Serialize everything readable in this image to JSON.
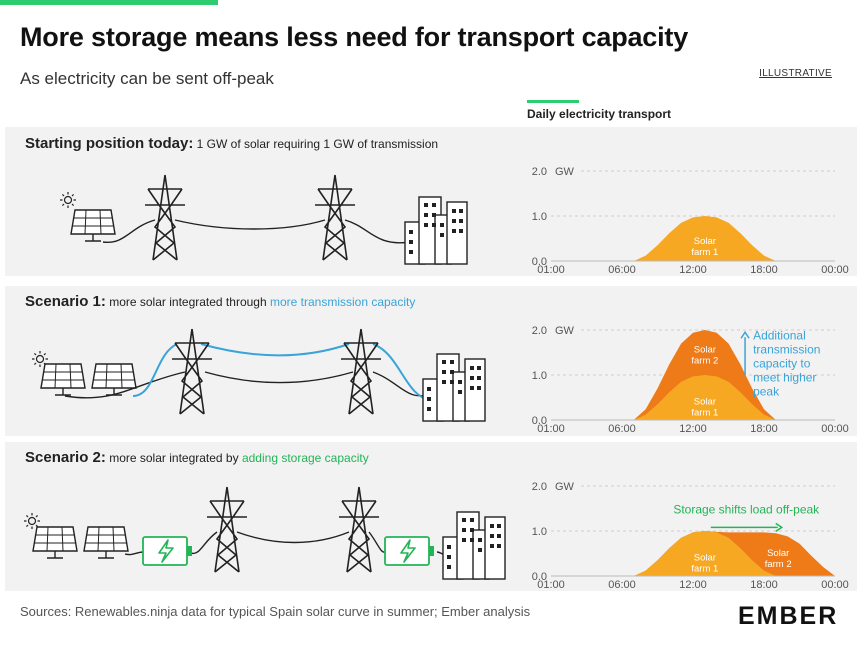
{
  "header": {
    "title": "More storage means less need for transport capacity",
    "subtitle": "As electricity can be sent off-peak",
    "tag": "ILLUSTRATIVE",
    "chart_header": "Daily electricity transport"
  },
  "panels": [
    {
      "heading": "Starting position today:",
      "text": " 1 GW of solar requiring 1 GW of transmission",
      "highlight": ""
    },
    {
      "heading": "Scenario 1:",
      "text": " more solar integrated through ",
      "highlight": "more transmission capacity"
    },
    {
      "heading": "Scenario 2:",
      "text": " more solar integrated by ",
      "highlight": "adding storage capacity"
    }
  ],
  "colors": {
    "solar_farm_1": "#f7a823",
    "solar_farm_2": "#ee7a18",
    "transmission_annotation": "#3aa3d8",
    "storage_annotation": "#22b556",
    "panel_background": "#f2f2f2"
  },
  "footer": {
    "sources": "Sources: Renewables.ninja data for typical Spain solar curve in summer; Ember analysis",
    "logo": "EMBER"
  },
  "chart_data": [
    {
      "type": "area",
      "title": "Starting position today",
      "ylabel": "GW",
      "xlim": [
        0,
        24
      ],
      "ylim": [
        0,
        2
      ],
      "x_ticks": [
        0,
        6,
        12,
        18,
        24
      ],
      "x_tick_labels": [
        "01:00",
        "06:00",
        "12:00",
        "18:00",
        "00:00"
      ],
      "y_ticks": [
        0,
        1,
        2
      ],
      "y_tick_labels": [
        "0.0",
        "1.0",
        "2.0"
      ],
      "y_unit_label": "GW",
      "x": [
        7,
        8,
        9,
        10,
        11,
        12,
        13,
        14,
        15,
        16,
        17,
        18,
        19
      ],
      "series": [
        {
          "name": "Solar farm 1",
          "label_lines": [
            "Solar",
            "farm 1"
          ],
          "label_at": [
            13.0,
            0.38
          ],
          "values": [
            0.0,
            0.12,
            0.35,
            0.62,
            0.85,
            0.97,
            1.0,
            0.97,
            0.85,
            0.62,
            0.35,
            0.12,
            0.0
          ]
        }
      ],
      "annotations": []
    },
    {
      "type": "area",
      "title": "Scenario 1",
      "ylabel": "GW",
      "xlim": [
        0,
        24
      ],
      "ylim": [
        0,
        2
      ],
      "x_ticks": [
        0,
        6,
        12,
        18,
        24
      ],
      "x_tick_labels": [
        "01:00",
        "06:00",
        "12:00",
        "18:00",
        "00:00"
      ],
      "y_ticks": [
        0,
        1,
        2
      ],
      "y_tick_labels": [
        "0.0",
        "1.0",
        "2.0"
      ],
      "y_unit_label": "GW",
      "x": [
        7,
        8,
        9,
        10,
        11,
        12,
        13,
        14,
        15,
        16,
        17,
        18,
        19
      ],
      "series": [
        {
          "name": "Solar farm 1",
          "label_lines": [
            "Solar",
            "farm 1"
          ],
          "label_at": [
            13.0,
            0.35
          ],
          "values": [
            0.0,
            0.12,
            0.35,
            0.62,
            0.85,
            0.97,
            1.0,
            0.97,
            0.85,
            0.62,
            0.35,
            0.12,
            0.0
          ]
        },
        {
          "name": "Solar farm 2",
          "label_lines": [
            "Solar",
            "farm 2"
          ],
          "label_at": [
            13.0,
            1.5
          ],
          "values": [
            0.0,
            0.24,
            0.7,
            1.24,
            1.7,
            1.94,
            2.0,
            1.94,
            1.7,
            1.24,
            0.7,
            0.24,
            0.0
          ]
        }
      ],
      "annotations": [
        {
          "kind": "vertical-arrow",
          "x": 16.4,
          "y_from": 1.0,
          "y_to": 1.95,
          "text_lines": [
            "Additional",
            "transmission",
            "capacity to",
            "meet higher",
            "peak"
          ]
        }
      ]
    },
    {
      "type": "area",
      "title": "Scenario 2",
      "ylabel": "GW",
      "xlim": [
        0,
        24
      ],
      "ylim": [
        0,
        2
      ],
      "x_ticks": [
        0,
        6,
        12,
        18,
        24
      ],
      "x_tick_labels": [
        "01:00",
        "06:00",
        "12:00",
        "18:00",
        "00:00"
      ],
      "y_ticks": [
        0,
        1,
        2
      ],
      "y_tick_labels": [
        "0.0",
        "1.0",
        "2.0"
      ],
      "y_unit_label": "GW",
      "x": [
        7,
        8,
        9,
        10,
        11,
        12,
        13,
        14,
        15,
        16,
        17,
        18,
        19,
        20,
        21,
        22,
        23,
        24
      ],
      "series": [
        {
          "name": "Solar farm 1",
          "label_lines": [
            "Solar",
            "farm 1"
          ],
          "label_at": [
            13.0,
            0.35
          ],
          "values": [
            0.0,
            0.12,
            0.35,
            0.62,
            0.85,
            0.97,
            1.0,
            0.97,
            0.85,
            0.62,
            0.35,
            0.12,
            0.0,
            0.0,
            0.0,
            0.0,
            0.0,
            0.0
          ]
        },
        {
          "name": "Solar farm 2",
          "label_lines": [
            "Solar",
            "farm 2"
          ],
          "label_at": [
            19.2,
            0.45
          ],
          "values": [
            0.0,
            0.12,
            0.35,
            0.62,
            0.85,
            0.97,
            1.0,
            0.98,
            0.97,
            0.97,
            0.97,
            0.97,
            0.95,
            0.88,
            0.72,
            0.45,
            0.2,
            0.0
          ]
        }
      ],
      "annotations": [
        {
          "kind": "horizontal-arrow",
          "y": 1.08,
          "x_from": 13.5,
          "x_to": 19.5,
          "text": "Storage shifts load off-peak"
        }
      ]
    }
  ]
}
